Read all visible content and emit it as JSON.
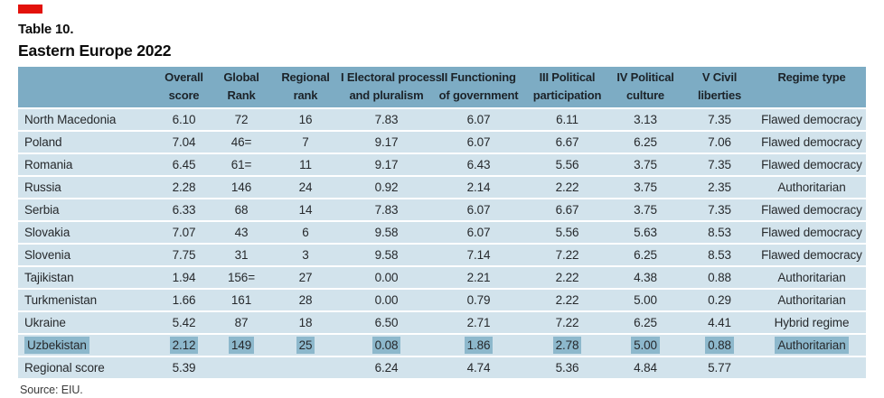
{
  "page": {
    "title": "Table 10.",
    "subtitle": "Eastern Europe 2022",
    "source": "Source: EIU.",
    "accent_red": "#e3120b",
    "header_bg": "#7dacc4",
    "row_bg": "#d2e3ec",
    "highlight_bg": "#8db8cc"
  },
  "table": {
    "columns": [
      {
        "key": "country",
        "label": ""
      },
      {
        "key": "overall-score",
        "label": "Overall\nscore"
      },
      {
        "key": "global-rank",
        "label": "Global\nRank"
      },
      {
        "key": "regional-rank",
        "label": "Regional\nrank"
      },
      {
        "key": "electoral-process",
        "label": "I Electoral process\nand pluralism"
      },
      {
        "key": "functioning-government",
        "label": "II Functioning\nof government"
      },
      {
        "key": "political-participation",
        "label": "III Political\nparticipation"
      },
      {
        "key": "political-culture",
        "label": "IV Political\nculture"
      },
      {
        "key": "civil-liberties",
        "label": "V Civil\nliberties"
      },
      {
        "key": "regime-type",
        "label": "Regime type"
      }
    ],
    "rows": [
      {
        "highlighted": false,
        "cells": [
          "North Macedonia",
          "6.10",
          "72",
          "16",
          "7.83",
          "6.07",
          "6.11",
          "3.13",
          "7.35",
          "Flawed democracy"
        ]
      },
      {
        "highlighted": false,
        "cells": [
          "Poland",
          "7.04",
          "46=",
          "7",
          "9.17",
          "6.07",
          "6.67",
          "6.25",
          "7.06",
          "Flawed democracy"
        ]
      },
      {
        "highlighted": false,
        "cells": [
          "Romania",
          "6.45",
          "61=",
          "11",
          "9.17",
          "6.43",
          "5.56",
          "3.75",
          "7.35",
          "Flawed democracy"
        ]
      },
      {
        "highlighted": false,
        "cells": [
          "Russia",
          "2.28",
          "146",
          "24",
          "0.92",
          "2.14",
          "2.22",
          "3.75",
          "2.35",
          "Authoritarian"
        ]
      },
      {
        "highlighted": false,
        "cells": [
          "Serbia",
          "6.33",
          "68",
          "14",
          "7.83",
          "6.07",
          "6.67",
          "3.75",
          "7.35",
          "Flawed democracy"
        ]
      },
      {
        "highlighted": false,
        "cells": [
          "Slovakia",
          "7.07",
          "43",
          "6",
          "9.58",
          "6.07",
          "5.56",
          "5.63",
          "8.53",
          "Flawed democracy"
        ]
      },
      {
        "highlighted": false,
        "cells": [
          "Slovenia",
          "7.75",
          "31",
          "3",
          "9.58",
          "7.14",
          "7.22",
          "6.25",
          "8.53",
          "Flawed democracy"
        ]
      },
      {
        "highlighted": false,
        "cells": [
          "Tajikistan",
          "1.94",
          "156=",
          "27",
          "0.00",
          "2.21",
          "2.22",
          "4.38",
          "0.88",
          "Authoritarian"
        ]
      },
      {
        "highlighted": false,
        "cells": [
          "Turkmenistan",
          "1.66",
          "161",
          "28",
          "0.00",
          "0.79",
          "2.22",
          "5.00",
          "0.29",
          "Authoritarian"
        ]
      },
      {
        "highlighted": false,
        "cells": [
          "Ukraine",
          "5.42",
          "87",
          "18",
          "6.50",
          "2.71",
          "7.22",
          "6.25",
          "4.41",
          "Hybrid regime"
        ]
      },
      {
        "highlighted": true,
        "cells": [
          "Uzbekistan",
          "2.12",
          "149",
          "25",
          "0.08",
          "1.86",
          "2.78",
          "5.00",
          "0.88",
          "Authoritarian"
        ]
      },
      {
        "highlighted": false,
        "cells": [
          "Regional score",
          "5.39",
          "",
          "",
          "6.24",
          "4.74",
          "5.36",
          "4.84",
          "5.77",
          ""
        ]
      }
    ]
  }
}
